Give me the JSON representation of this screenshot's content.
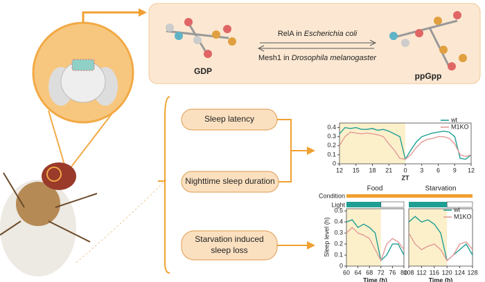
{
  "diagram": {
    "molecule_left": "GDP",
    "molecule_right": "ppGpp",
    "relA_prefix": "RelA in",
    "relA_species": "Escherichia coli",
    "mesh1_prefix": "Mesh1 in",
    "mesh1_species": "Drosophila melanogaster",
    "boxes": [
      "Sleep latency",
      "Nighttime sleep duration",
      "Starvation induced",
      "sleep loss"
    ]
  },
  "chart_data": [
    {
      "type": "line",
      "xlabel": "ZT",
      "x": [
        0,
        1,
        2,
        3,
        4,
        5,
        6,
        7,
        8,
        9,
        10,
        11,
        12,
        13,
        14,
        15,
        16,
        17,
        18,
        19,
        20,
        21,
        22,
        23,
        24
      ],
      "xlim": [
        0,
        24
      ],
      "xticks": [
        {
          "value": 0,
          "label": "12"
        },
        {
          "value": 3,
          "label": "15"
        },
        {
          "value": 6,
          "label": "18"
        },
        {
          "value": 9,
          "label": "21"
        },
        {
          "value": 12,
          "label": "0"
        },
        {
          "value": 15,
          "label": "3"
        },
        {
          "value": 18,
          "label": "6"
        },
        {
          "value": 21,
          "label": "9"
        },
        {
          "value": 24,
          "label": "12"
        }
      ],
      "ylim": [
        0,
        0.45
      ],
      "yticks": [
        0,
        0.1,
        0.2,
        0.3,
        0.4
      ],
      "series": [
        {
          "name": "wt",
          "color": "#1f9e94",
          "values": [
            0.33,
            0.4,
            0.39,
            0.4,
            0.38,
            0.38,
            0.39,
            0.37,
            0.38,
            0.36,
            0.33,
            0.3,
            0.05,
            0.15,
            0.24,
            0.3,
            0.32,
            0.34,
            0.35,
            0.36,
            0.35,
            0.3,
            0.06,
            0.05,
            0.1
          ]
        },
        {
          "name": "M1KO",
          "color": "#e29a96",
          "values": [
            0.2,
            0.3,
            0.35,
            0.34,
            0.33,
            0.34,
            0.33,
            0.32,
            0.3,
            0.22,
            0.15,
            0.06,
            0.05,
            0.1,
            0.18,
            0.24,
            0.27,
            0.28,
            0.3,
            0.3,
            0.28,
            0.22,
            0.1,
            0.08,
            0.1
          ]
        }
      ]
    },
    {
      "type": "line",
      "ylabel": "Sleep level (h)",
      "condition_label": "Condition",
      "conditions": [
        "Food",
        "Starvation"
      ],
      "light_label": "Light",
      "ylim": [
        0,
        0.52
      ],
      "yticks": [
        0,
        0.1,
        0.2,
        0.3,
        0.4,
        0.5
      ],
      "series": [
        {
          "name": "wt",
          "color": "#1f9e94"
        },
        {
          "name": "M1KO",
          "color": "#e29a96"
        }
      ],
      "panels": [
        {
          "xlabel": "Time (h)",
          "xlim": [
            60,
            80
          ],
          "xticks": [
            60,
            64,
            68,
            72,
            76,
            80
          ],
          "x": [
            60,
            62,
            64,
            66,
            68,
            70,
            72,
            74,
            76,
            78,
            80
          ],
          "values": [
            [
              0.4,
              0.42,
              0.35,
              0.38,
              0.35,
              0.3,
              0.05,
              0.1,
              0.2,
              0.2,
              0.1
            ],
            [
              0.3,
              0.35,
              0.3,
              0.28,
              0.25,
              0.15,
              0.05,
              0.2,
              0.25,
              0.22,
              0.15
            ]
          ]
        },
        {
          "xlabel": "Time (h)",
          "xlim": [
            108,
            128
          ],
          "xticks": [
            108,
            112,
            116,
            120,
            124,
            128
          ],
          "x": [
            108,
            110,
            112,
            114,
            116,
            118,
            120,
            122,
            124,
            126,
            128
          ],
          "values": [
            [
              0.4,
              0.45,
              0.4,
              0.42,
              0.38,
              0.3,
              0.05,
              0.1,
              0.15,
              0.2,
              0.1
            ],
            [
              0.3,
              0.2,
              0.15,
              0.18,
              0.2,
              0.15,
              0.05,
              0.1,
              0.2,
              0.22,
              0.15
            ]
          ]
        }
      ]
    }
  ]
}
